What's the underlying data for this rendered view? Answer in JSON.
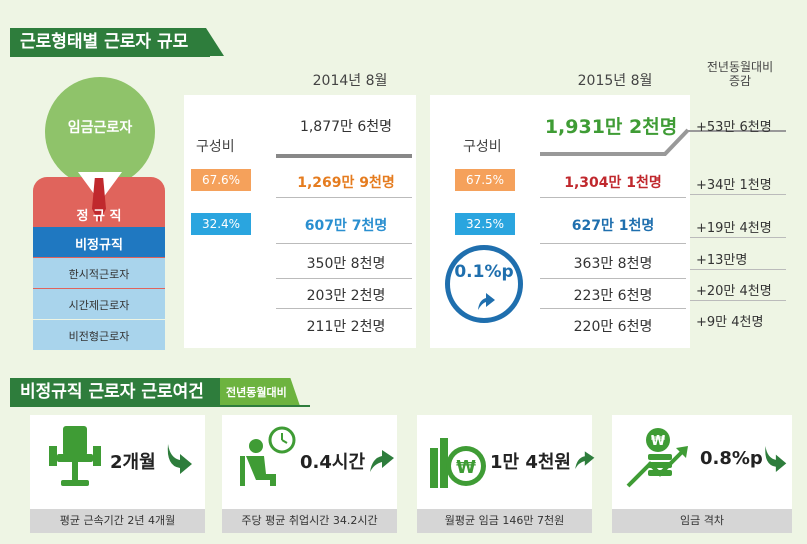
{
  "section1": {
    "title": "근로형태별 근로자 규모",
    "year_2014": "2014년 8월",
    "year_2015": "2015년 8월",
    "yoy_header": "전년동월대비\n증감",
    "composition_label": "구성비"
  },
  "categories": {
    "total": "임금근로자",
    "regular": "정 규 직",
    "nonregular": "비정규직",
    "limited": "한시적근로자",
    "parttime": "시간제근로자",
    "atypical": "비전형근로자"
  },
  "data_2014": {
    "total": "1,877만 6천명",
    "regular_pct": "67.6%",
    "regular": "1,269만 9천명",
    "nonregular_pct": "32.4%",
    "nonregular": "607만 7천명",
    "limited": "350만 8천명",
    "parttime": "203만 2천명",
    "atypical": "211만 2천명"
  },
  "data_2015": {
    "total": "1,931만 2천명",
    "regular_pct": "67.5%",
    "regular": "1,304만 1천명",
    "nonregular_pct": "32.5%",
    "nonregular": "627만 1천명",
    "limited": "363만 8천명",
    "parttime": "223만 6천명",
    "atypical": "220만 6천명",
    "badge": "0.1%p"
  },
  "increase": {
    "total": "+53만 6천명",
    "regular": "+34만 1천명",
    "nonregular": "+19만 4천명",
    "limited": "+13만명",
    "parttime": "+20만 4천명",
    "atypical": "+9만 4천명"
  },
  "section2": {
    "title": "비정규직 근로자 근로여건",
    "subtitle": "전년동월대비",
    "cards": [
      {
        "value": "2개월",
        "caption": "평균 근속기간  2년 4개월",
        "icon": "chair-icon",
        "trend": "down"
      },
      {
        "value": "0.4시간",
        "caption": "주당 평균 취업시간  34.2시간",
        "icon": "clock-person-icon",
        "trend": "up"
      },
      {
        "value": "1만 4천원",
        "caption": "월평균 임금  146만 7천원",
        "icon": "coins-icon",
        "trend": "up"
      },
      {
        "value": "0.8%p",
        "caption": "임금 격차",
        "icon": "money-trend-icon",
        "trend": "down"
      }
    ]
  },
  "colors": {
    "green": "#2e7d3c",
    "orange": "#f5a15b",
    "blue": "#2aa5df",
    "red_text": "#c0282d",
    "orange_text": "#e57c1f",
    "blue_text": "#2a8fd0"
  }
}
